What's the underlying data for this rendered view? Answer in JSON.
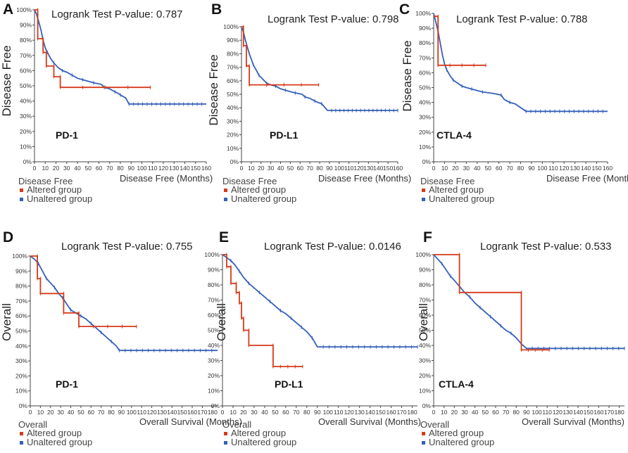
{
  "colors": {
    "altered": "#d63a1a",
    "unaltered": "#3560b8"
  },
  "chart_data": [
    {
      "panel": "A",
      "type": "line",
      "title": "Logrank Test P-value: 0.787",
      "ylabel": "Disease Free",
      "xlabel": "Disease Free (Months)",
      "gene": "PD-1",
      "xticks": [
        0,
        10,
        20,
        30,
        40,
        50,
        60,
        70,
        80,
        90,
        100,
        110,
        120,
        130,
        140,
        150,
        160
      ],
      "xlim": [
        0,
        160
      ],
      "ylim": [
        0,
        100
      ],
      "yticks": [
        0,
        10,
        20,
        30,
        40,
        50,
        60,
        70,
        80,
        90,
        100
      ],
      "legend": {
        "title": "Disease Free",
        "items": [
          "Altered group",
          "Unaltered group"
        ]
      },
      "series": [
        {
          "name": "Altered group",
          "values": [
            [
              0,
              100
            ],
            [
              3,
              100
            ],
            [
              3,
              81
            ],
            [
              8,
              81
            ],
            [
              8,
              72
            ],
            [
              11,
              72
            ],
            [
              11,
              63
            ],
            [
              18,
              63
            ],
            [
              18,
              56
            ],
            [
              24,
              56
            ],
            [
              24,
              49
            ],
            [
              108,
              49
            ]
          ]
        },
        {
          "name": "Unaltered group",
          "values": [
            [
              0,
              100
            ],
            [
              2,
              97
            ],
            [
              4,
              92
            ],
            [
              6,
              87
            ],
            [
              8,
              80
            ],
            [
              10,
              75
            ],
            [
              12,
              72
            ],
            [
              15,
              68
            ],
            [
              18,
              65
            ],
            [
              22,
              62
            ],
            [
              26,
              60
            ],
            [
              30,
              59
            ],
            [
              35,
              57
            ],
            [
              40,
              55
            ],
            [
              45,
              54
            ],
            [
              50,
              53
            ],
            [
              55,
              52
            ],
            [
              62,
              51
            ],
            [
              65,
              49
            ],
            [
              70,
              48
            ],
            [
              75,
              46
            ],
            [
              78,
              45
            ],
            [
              80,
              44
            ],
            [
              85,
              42
            ],
            [
              88,
              38
            ],
            [
              160,
              38
            ]
          ]
        }
      ]
    },
    {
      "panel": "B",
      "type": "line",
      "title": "Logrank Test P-value: 0.798",
      "ylabel": "Disease Free",
      "xlabel": "Disease Free (Months)",
      "gene": "PD-L1",
      "xticks": [
        0,
        10,
        20,
        30,
        40,
        50,
        60,
        70,
        80,
        90,
        100,
        110,
        120,
        130,
        140,
        150,
        160
      ],
      "xlim": [
        0,
        160
      ],
      "ylim": [
        0,
        100
      ],
      "yticks": [
        0,
        10,
        20,
        30,
        40,
        50,
        60,
        70,
        80,
        90,
        100
      ],
      "legend": {
        "title": "Disease Free",
        "items": [
          "Altered group",
          "Unaltered group"
        ]
      },
      "series": [
        {
          "name": "Altered group",
          "values": [
            [
              0,
              100
            ],
            [
              2,
              100
            ],
            [
              2,
              86
            ],
            [
              5,
              86
            ],
            [
              5,
              71
            ],
            [
              8,
              71
            ],
            [
              8,
              57
            ],
            [
              79,
              57
            ]
          ]
        },
        {
          "name": "Unaltered group",
          "values": [
            [
              0,
              100
            ],
            [
              2,
              96
            ],
            [
              4,
              90
            ],
            [
              6,
              85
            ],
            [
              8,
              80
            ],
            [
              10,
              76
            ],
            [
              12,
              72
            ],
            [
              15,
              68
            ],
            [
              18,
              64
            ],
            [
              22,
              61
            ],
            [
              26,
              58
            ],
            [
              30,
              57
            ],
            [
              35,
              56
            ],
            [
              40,
              54
            ],
            [
              45,
              53
            ],
            [
              50,
              52
            ],
            [
              55,
              51
            ],
            [
              62,
              50
            ],
            [
              65,
              48
            ],
            [
              70,
              47
            ],
            [
              75,
              45
            ],
            [
              78,
              44
            ],
            [
              82,
              43
            ],
            [
              88,
              38
            ],
            [
              160,
              38
            ]
          ]
        }
      ]
    },
    {
      "panel": "C",
      "type": "line",
      "title": "Logrank Test P-value: 0.788",
      "ylabel": "Disease Free",
      "xlabel": "Disease Free (Months)",
      "gene": "CTLA-4",
      "xticks": [
        0,
        10,
        20,
        30,
        40,
        50,
        60,
        70,
        80,
        90,
        100,
        110,
        120,
        130,
        140,
        150,
        160
      ],
      "xlim": [
        0,
        160
      ],
      "ylim": [
        0,
        100
      ],
      "yticks": [
        0,
        10,
        20,
        30,
        40,
        50,
        60,
        70,
        80,
        90,
        100
      ],
      "legend": {
        "title": "Disease Free",
        "items": [
          "Altered group",
          "Unaltered group"
        ]
      },
      "series": [
        {
          "name": "Altered group",
          "values": [
            [
              0,
              98
            ],
            [
              4,
              98
            ],
            [
              4,
              65
            ],
            [
              48,
              65
            ]
          ]
        },
        {
          "name": "Unaltered group",
          "values": [
            [
              0,
              100
            ],
            [
              2,
              94
            ],
            [
              4,
              88
            ],
            [
              6,
              80
            ],
            [
              8,
              72
            ],
            [
              10,
              66
            ],
            [
              12,
              62
            ],
            [
              15,
              58
            ],
            [
              18,
              55
            ],
            [
              22,
              53
            ],
            [
              26,
              51
            ],
            [
              30,
              50
            ],
            [
              35,
              49
            ],
            [
              40,
              48
            ],
            [
              45,
              47
            ],
            [
              55,
              46
            ],
            [
              62,
              45
            ],
            [
              65,
              42
            ],
            [
              70,
              40
            ],
            [
              75,
              39
            ],
            [
              85,
              34
            ],
            [
              160,
              34
            ]
          ]
        }
      ]
    },
    {
      "panel": "D",
      "type": "line",
      "title": "Logrank Test P-value: 0.755",
      "ylabel": "Overall",
      "xlabel": "Overall Survival (Months)",
      "gene": "PD-1",
      "xticks": [
        0,
        10,
        20,
        30,
        40,
        50,
        60,
        70,
        80,
        90,
        100,
        110,
        120,
        130,
        140,
        150,
        160,
        170,
        180
      ],
      "xlim": [
        0,
        185
      ],
      "ylim": [
        0,
        100
      ],
      "yticks": [
        0,
        10,
        20,
        30,
        40,
        50,
        60,
        70,
        80,
        90,
        100
      ],
      "legend": {
        "title": "Overall",
        "items": [
          "Altered group",
          "Unaltered group"
        ]
      },
      "series": [
        {
          "name": "Altered group",
          "values": [
            [
              0,
              100
            ],
            [
              7,
              100
            ],
            [
              7,
              85
            ],
            [
              10,
              85
            ],
            [
              10,
              75
            ],
            [
              33,
              75
            ],
            [
              33,
              62
            ],
            [
              48,
              62
            ],
            [
              48,
              53
            ],
            [
              105,
              53
            ]
          ]
        },
        {
          "name": "Unaltered group",
          "values": [
            [
              0,
              100
            ],
            [
              4,
              98
            ],
            [
              8,
              95
            ],
            [
              12,
              90
            ],
            [
              16,
              85
            ],
            [
              20,
              82
            ],
            [
              24,
              79
            ],
            [
              28,
              75
            ],
            [
              32,
              72
            ],
            [
              36,
              68
            ],
            [
              40,
              64
            ],
            [
              45,
              62
            ],
            [
              50,
              60
            ],
            [
              55,
              58
            ],
            [
              60,
              55
            ],
            [
              65,
              52
            ],
            [
              70,
              49
            ],
            [
              75,
              46
            ],
            [
              80,
              43
            ],
            [
              85,
              40
            ],
            [
              88,
              37
            ],
            [
              185,
              37
            ]
          ]
        }
      ]
    },
    {
      "panel": "E",
      "type": "line",
      "title": "Logrank Test P-value: 0.0146",
      "ylabel": "Overall",
      "xlabel": "Overall Survival (Months)",
      "gene": "PD-L1",
      "xticks": [
        0,
        10,
        20,
        30,
        40,
        50,
        60,
        70,
        80,
        90,
        100,
        110,
        120,
        130,
        140,
        150,
        160,
        170,
        180
      ],
      "xlim": [
        0,
        185
      ],
      "ylim": [
        0,
        100
      ],
      "yticks": [
        0,
        10,
        20,
        30,
        40,
        50,
        60,
        70,
        80,
        90,
        100
      ],
      "legend": {
        "title": "Overall",
        "items": [
          "Altered group",
          "Unaltered group"
        ]
      },
      "series": [
        {
          "name": "Altered group",
          "values": [
            [
              0,
              100
            ],
            [
              4,
              100
            ],
            [
              4,
              92
            ],
            [
              8,
              92
            ],
            [
              8,
              81
            ],
            [
              13,
              81
            ],
            [
              13,
              75
            ],
            [
              16,
              75
            ],
            [
              16,
              68
            ],
            [
              18,
              68
            ],
            [
              18,
              58
            ],
            [
              20,
              58
            ],
            [
              20,
              50
            ],
            [
              25,
              50
            ],
            [
              25,
              40
            ],
            [
              48,
              40
            ],
            [
              48,
              26
            ],
            [
              76,
              26
            ]
          ]
        },
        {
          "name": "Unaltered group",
          "values": [
            [
              0,
              100
            ],
            [
              4,
              98
            ],
            [
              8,
              96
            ],
            [
              12,
              93
            ],
            [
              16,
              89
            ],
            [
              20,
              85
            ],
            [
              25,
              81
            ],
            [
              30,
              78
            ],
            [
              35,
              75
            ],
            [
              40,
              72
            ],
            [
              45,
              69
            ],
            [
              50,
              66
            ],
            [
              55,
              63
            ],
            [
              60,
              61
            ],
            [
              65,
              58
            ],
            [
              70,
              55
            ],
            [
              75,
              52
            ],
            [
              80,
              49
            ],
            [
              85,
              45
            ],
            [
              90,
              39
            ],
            [
              185,
              39
            ]
          ]
        }
      ]
    },
    {
      "panel": "F",
      "type": "line",
      "title": "Logrank Test P-value: 0.533",
      "ylabel": "Overall",
      "xlabel": "Overall Survival (Months)",
      "gene": "CTLA-4",
      "xticks": [
        0,
        10,
        20,
        30,
        40,
        50,
        60,
        70,
        80,
        90,
        100,
        110,
        120,
        130,
        140,
        150,
        160,
        170,
        180
      ],
      "xlim": [
        0,
        185
      ],
      "ylim": [
        0,
        100
      ],
      "yticks": [
        0,
        10,
        20,
        30,
        40,
        50,
        60,
        70,
        80,
        90,
        100
      ],
      "legend": {
        "title": "Overall",
        "items": [
          "Altered group",
          "Unaltered group"
        ]
      },
      "series": [
        {
          "name": "Altered group",
          "values": [
            [
              0,
              100
            ],
            [
              25,
              100
            ],
            [
              25,
              75
            ],
            [
              85,
              75
            ],
            [
              85,
              37
            ],
            [
              112,
              37
            ]
          ]
        },
        {
          "name": "Unaltered group",
          "values": [
            [
              0,
              100
            ],
            [
              4,
              97
            ],
            [
              8,
              94
            ],
            [
              12,
              90
            ],
            [
              16,
              86
            ],
            [
              20,
              83
            ],
            [
              25,
              79
            ],
            [
              30,
              75
            ],
            [
              35,
              72
            ],
            [
              40,
              68
            ],
            [
              45,
              65
            ],
            [
              50,
              62
            ],
            [
              55,
              59
            ],
            [
              60,
              56
            ],
            [
              65,
              53
            ],
            [
              70,
              50
            ],
            [
              75,
              48
            ],
            [
              80,
              45
            ],
            [
              85,
              41
            ],
            [
              90,
              38
            ],
            [
              185,
              38
            ]
          ]
        }
      ]
    }
  ]
}
